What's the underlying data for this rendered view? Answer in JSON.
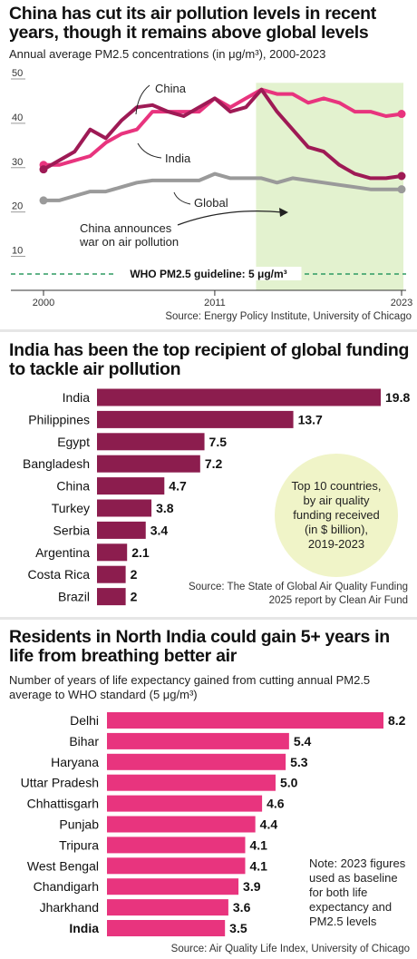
{
  "section1": {
    "title": "China has cut its air pollution levels in recent years, though it remains above global levels",
    "subtitle": "Annual average PM2.5 concentrations (in μg/m³), 2000-2023",
    "source": "Source: Energy Policy Institute, University of Chicago",
    "label_china": "China",
    "label_india": "India",
    "label_global": "Global",
    "annotation": "China announces war on air pollution",
    "guideline": "WHO PM2.5 guideline: 5 μg/m³"
  },
  "section2": {
    "title": "India has been the top recipient of global funding to tackle air pollution",
    "bubble_text": "Top 10 countries, by air quality funding received (in $ billion), 2019-2023",
    "source": "Source: The State of Global Air Quality Funding 2025 report by Clean Air Fund"
  },
  "section3": {
    "title": "Residents in North India could gain 5+ years in life from breathing better air",
    "subtitle": "Number of years of life expectancy gained from cutting annual PM2.5 average to WHO standard (5 μg/m³)",
    "note": "Note: 2023 figures used as baseline for both life expectancy and PM2.5 levels",
    "source": "Source: Air Quality Life Index, University of Chicago"
  },
  "colors": {
    "china": "#9e1a55",
    "india": "#e8347e",
    "global": "#9a9a9a",
    "funding_bar": "#8c1d4e",
    "life_bar": "#e8347e",
    "highlight": "#e3f2cf",
    "guideline": "#2e9b62",
    "bubble": "#f0f4c8"
  },
  "chart_data": [
    {
      "type": "line",
      "x": [
        2000,
        2001,
        2002,
        2003,
        2004,
        2005,
        2006,
        2007,
        2008,
        2009,
        2010,
        2011,
        2012,
        2013,
        2014,
        2015,
        2016,
        2017,
        2018,
        2019,
        2020,
        2021,
        2022,
        2023
      ],
      "x_ticks": [
        "2000",
        "2011",
        "2023"
      ],
      "y_ticks": [
        "10",
        "20",
        "30",
        "40",
        "50"
      ],
      "ylim": [
        5,
        50
      ],
      "highlight_range": [
        2014,
        2023
      ],
      "series": [
        {
          "name": "China",
          "values": [
            29,
            31,
            33,
            38,
            36,
            40,
            43,
            43.5,
            42,
            41,
            43,
            45,
            42,
            43,
            47,
            42,
            38,
            34,
            33,
            30,
            28,
            27,
            27,
            27.5
          ]
        },
        {
          "name": "India",
          "values": [
            30,
            30,
            31,
            32,
            35,
            37,
            38,
            42,
            42,
            42,
            42,
            45,
            43,
            45,
            47,
            46,
            46,
            44,
            45,
            44,
            42,
            42,
            41,
            41.5
          ]
        },
        {
          "name": "Global",
          "values": [
            22,
            22,
            23,
            24,
            24,
            25,
            26,
            26.5,
            26.5,
            26.5,
            26.5,
            28,
            27,
            27,
            27,
            26,
            27,
            26.5,
            26,
            25.5,
            25,
            24.5,
            24.5,
            24.5
          ]
        }
      ],
      "guideline_value": 5
    },
    {
      "type": "bar",
      "categories": [
        "India",
        "Philippines",
        "Egypt",
        "Bangladesh",
        "China",
        "Turkey",
        "Serbia",
        "Argentina",
        "Costa Rica",
        "Brazil"
      ],
      "values": [
        19.8,
        13.7,
        7.5,
        7.2,
        4.7,
        3.8,
        3.4,
        2.1,
        2,
        2
      ],
      "value_labels": [
        "19.8",
        "13.7",
        "7.5",
        "7.2",
        "4.7",
        "3.8",
        "3.4",
        "2.1",
        "2",
        "2"
      ]
    },
    {
      "type": "bar",
      "categories": [
        "Delhi",
        "Bihar",
        "Haryana",
        "Uttar Pradesh",
        "Chhattisgarh",
        "Punjab",
        "Tripura",
        "West Bengal",
        "Chandigarh",
        "Jharkhand",
        "India"
      ],
      "values": [
        8.2,
        5.4,
        5.3,
        5.0,
        4.6,
        4.4,
        4.1,
        4.1,
        3.9,
        3.6,
        3.5
      ],
      "value_labels": [
        "8.2",
        "5.4",
        "5.3",
        "5.0",
        "4.6",
        "4.4",
        "4.1",
        "4.1",
        "3.9",
        "3.6",
        "3.5"
      ],
      "bold_category": "India"
    }
  ]
}
